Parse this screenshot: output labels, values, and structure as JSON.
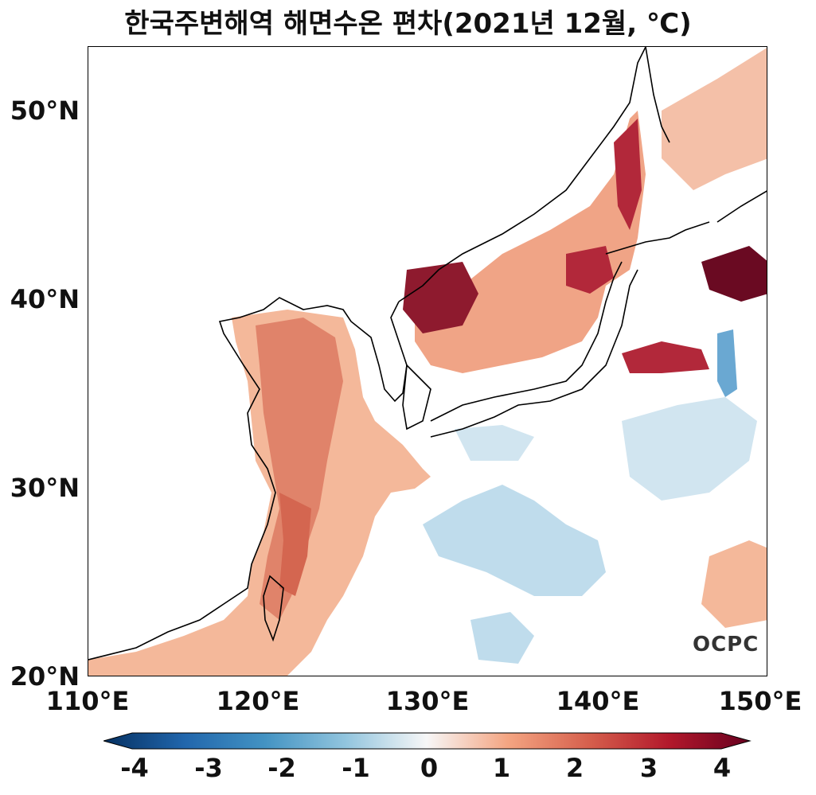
{
  "title": "한국주변해역 해면수온 편차(2021년 12월, ℃)",
  "logo_text": "OCPC",
  "map": {
    "lon_range": [
      110,
      150
    ],
    "lat_range": [
      20,
      53.5
    ],
    "lat_ticks": [
      "50°N",
      "40°N",
      "30°N",
      "20°N"
    ],
    "lon_ticks": [
      "110°E",
      "120°E",
      "130°E",
      "140°E",
      "150°E"
    ],
    "variable": "sea surface temperature anomaly",
    "units": "℃"
  },
  "colorbar": {
    "ticks": [
      "-4",
      "-3",
      "-2",
      "-1",
      "0",
      "1",
      "2",
      "3",
      "4"
    ],
    "colors": [
      "#053061",
      "#2166ac",
      "#4393c3",
      "#92c5de",
      "#f7f7f7",
      "#f4a582",
      "#d6604d",
      "#b2182b",
      "#67001f"
    ]
  }
}
